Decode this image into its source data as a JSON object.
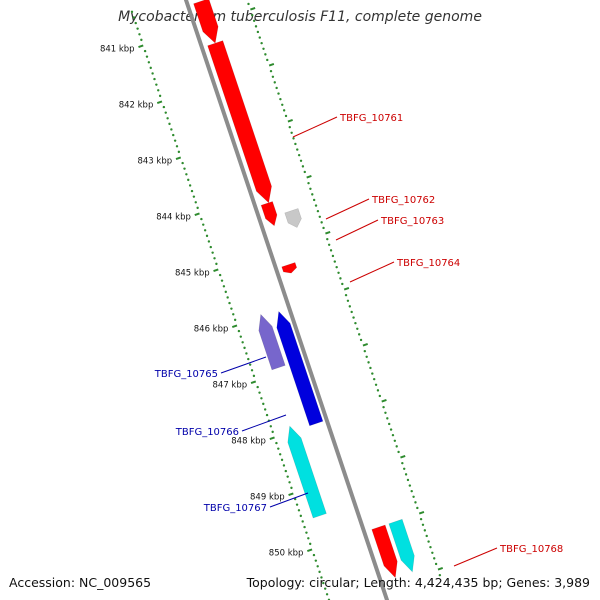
{
  "title": "Mycobacterium tuberculosis F11, complete genome",
  "footer": {
    "accession": "Accession: NC_009565",
    "summary": "Topology: circular; Length: 4,424,435 bp; Genes: 3,989"
  },
  "colors": {
    "backbone": "#8c8c8c",
    "scale_dots": "#2e8b2e",
    "forward_gene": "#ff0000",
    "pseudo_gene": "#c8c8c8",
    "reverse_gene": "#0000dd",
    "reverse_gene_alt": "#7766cc",
    "cyan_gene": "#00e0e0",
    "label_red": "#cc0000",
    "label_blue": "#0000aa"
  },
  "scale_ticks": [
    "841 kbp",
    "842 kbp",
    "843 kbp",
    "844 kbp",
    "845 kbp",
    "846 kbp",
    "847 kbp",
    "848 kbp",
    "849 kbp",
    "850 kbp"
  ],
  "genes": [
    {
      "label": "TBFG_10761",
      "strand": "+",
      "start": 841.35,
      "end": 844.2,
      "color": "forward_gene"
    },
    {
      "label": "TBFG_10762",
      "strand": "+",
      "start": 844.2,
      "end": 844.6,
      "color": "forward_gene"
    },
    {
      "label": "TBFG_10763",
      "strand": "+",
      "start": 844.45,
      "end": 844.75,
      "color": "pseudo_gene"
    },
    {
      "label": "TBFG_10764",
      "strand": "+",
      "start": 845.3,
      "end": 845.45,
      "color": "forward_gene"
    },
    {
      "label": "TBFG_10765",
      "strand": "-",
      "start": 845.95,
      "end": 846.9,
      "color": "reverse_gene_alt"
    },
    {
      "label": "TBFG_10766",
      "strand": "-",
      "start": 846.0,
      "end": 848.0,
      "color": "reverse_gene"
    },
    {
      "label": "TBFG_10767",
      "strand": "-",
      "start": 847.9,
      "end": 849.5,
      "color": "cyan_gene"
    },
    {
      "label": "TBFG_10768",
      "strand": "+",
      "start": 850.0,
      "end": 850.9,
      "color": "cyan_gene"
    }
  ],
  "partial_top_gene": {
    "strand": "+",
    "start": 840.6,
    "end": 841.35,
    "color": "forward_gene"
  },
  "partial_bottom_red": {
    "strand": "+",
    "start": 850.0,
    "end": 850.9,
    "color": "forward_gene"
  }
}
